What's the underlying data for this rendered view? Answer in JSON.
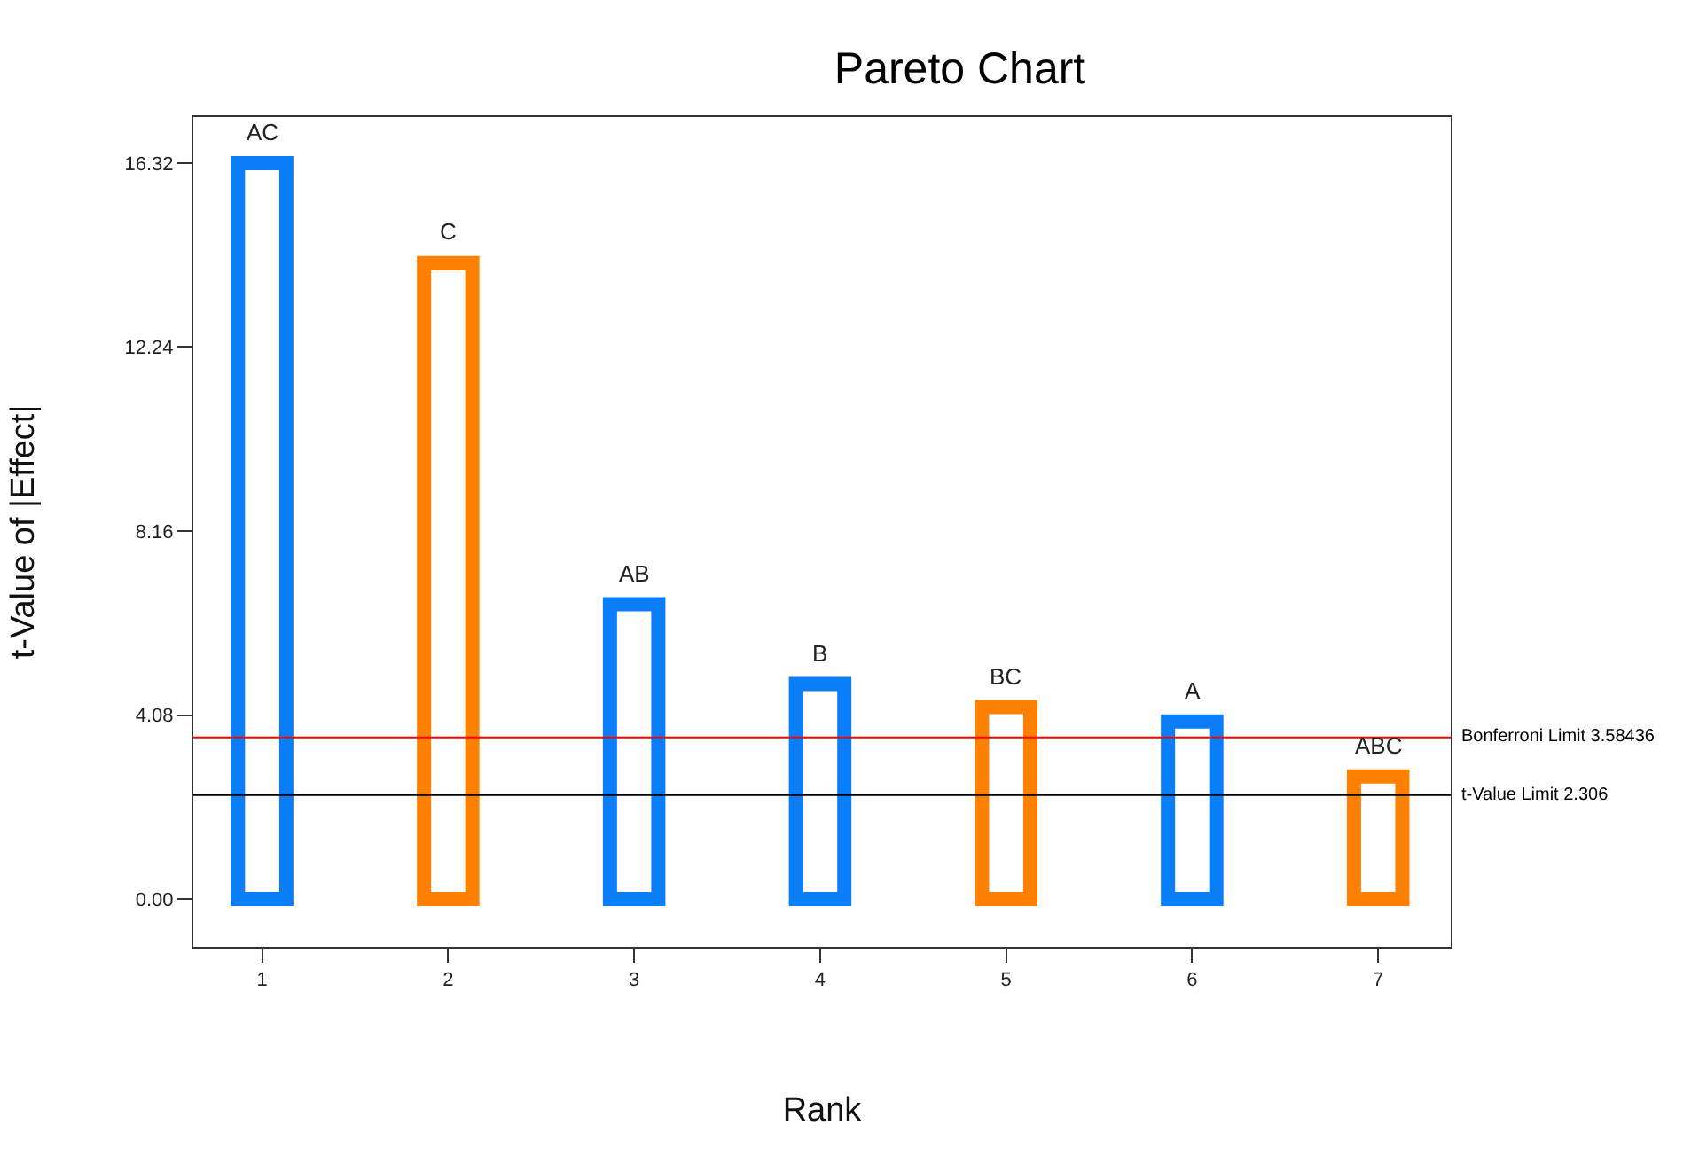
{
  "chart_data": {
    "type": "bar",
    "title": "Pareto Chart",
    "xlabel": "Rank",
    "ylabel": "t-Value of |Effect|",
    "x": [
      1,
      2,
      3,
      4,
      5,
      6,
      7
    ],
    "values": [
      16.32,
      14.1,
      6.54,
      4.77,
      4.26,
      3.94,
      2.72
    ],
    "colors": [
      "#0a7ef7",
      "#ff8000",
      "#0a7ef7",
      "#0a7ef7",
      "#ff8000",
      "#0a7ef7",
      "#ff8000"
    ],
    "annotations": [
      {
        "text": "AC",
        "x": 1,
        "y": 16.32
      },
      {
        "text": "C",
        "x": 2,
        "y": 14.1
      },
      {
        "text": "AB",
        "x": 3,
        "y": 6.54
      },
      {
        "text": "B",
        "x": 4,
        "y": 4.77
      },
      {
        "text": "BC",
        "x": 5,
        "y": 4.26
      },
      {
        "text": "A",
        "x": 6,
        "y": 3.94
      },
      {
        "text": "ABC",
        "x": 7,
        "y": 2.72
      }
    ],
    "ref_lines": [
      {
        "axis": "y",
        "value": 3.58436,
        "label": "Bonferroni Limit 3.58436",
        "color": "#ff0000"
      },
      {
        "axis": "y",
        "value": 2.306,
        "label": "t-Value Limit 2.306",
        "color": "#000000"
      }
    ],
    "xlim": [
      0.63,
      7.39
    ],
    "xticks": [
      1,
      2,
      3,
      4,
      5,
      6,
      7
    ],
    "ylim": [
      -1.06,
      17.34
    ],
    "yticks": [
      {
        "value": 0,
        "label": "0.00"
      },
      4.08,
      8.16,
      12.24,
      16.32
    ]
  }
}
